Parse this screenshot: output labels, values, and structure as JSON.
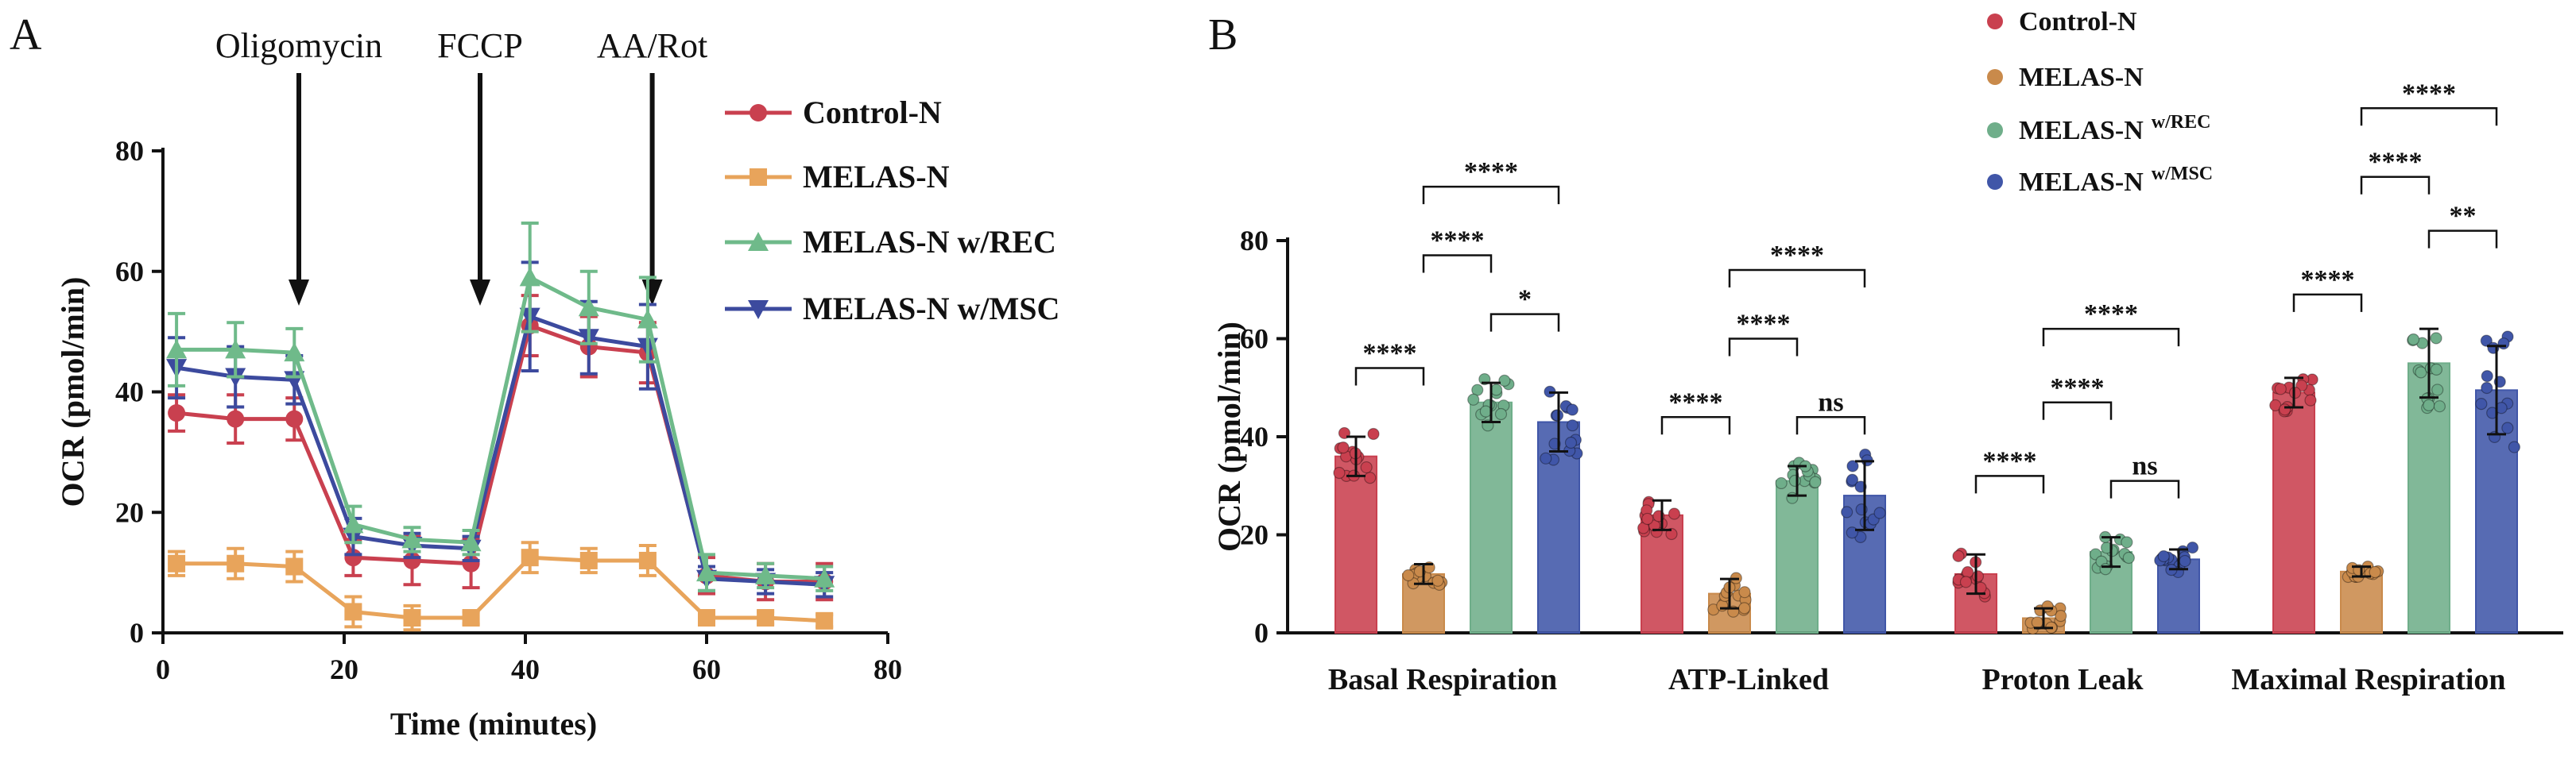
{
  "chart_data": [
    {
      "panel": "A",
      "type": "line",
      "xlabel": "Time (minutes)",
      "ylabel": "OCR (pmol/min)",
      "xlim": [
        0,
        80
      ],
      "ylim": [
        0,
        80
      ],
      "xticks": [
        "0",
        "20",
        "40",
        "60",
        "80"
      ],
      "yticks": [
        "0",
        "20",
        "40",
        "60",
        "80"
      ],
      "injections": [
        {
          "label": "Oligomycin",
          "x": 15
        },
        {
          "label": "FCCP",
          "x": 35
        },
        {
          "label": "AA/Rot",
          "x": 54
        }
      ],
      "x": [
        1.5,
        8,
        14.5,
        21,
        27.5,
        34,
        40.5,
        47,
        53.5,
        60,
        66.5,
        73
      ],
      "series": [
        {
          "name": "Control-N",
          "color": "#c9404f",
          "marker": "circle",
          "values": [
            36.5,
            35.5,
            35.5,
            12.5,
            12,
            11.5,
            51,
            47.5,
            46.5,
            9.5,
            8.5,
            8.5
          ],
          "errors": [
            3,
            4,
            3.5,
            3,
            4,
            4,
            5,
            5,
            5,
            3,
            3,
            3
          ]
        },
        {
          "name": "MELAS-N",
          "color": "#e8a45b",
          "marker": "square",
          "values": [
            11.5,
            11.5,
            11,
            3.5,
            2.5,
            2.5,
            12.5,
            12,
            12,
            2.5,
            2.5,
            2
          ],
          "errors": [
            2,
            2.5,
            2.5,
            2.5,
            2,
            1,
            2.5,
            2,
            2.5,
            1,
            1,
            1
          ]
        },
        {
          "name": "MELAS-N w/REC",
          "color": "#6fba8a",
          "marker": "triangle-up",
          "values": [
            47,
            47,
            46.5,
            18,
            15.5,
            15,
            59,
            54,
            52,
            10,
            9.5,
            9
          ],
          "errors": [
            6,
            4.5,
            4,
            3,
            2,
            2,
            9,
            6,
            7,
            3,
            2,
            2
          ]
        },
        {
          "name": "MELAS-N w/MSC",
          "color": "#3c4a9e",
          "marker": "triangle-down",
          "values": [
            44,
            42.5,
            42,
            16,
            14.5,
            14,
            52.5,
            49,
            47.5,
            9,
            8.5,
            8
          ],
          "errors": [
            5,
            5,
            4,
            3,
            2,
            2,
            9,
            6,
            7,
            2,
            2,
            2
          ]
        }
      ]
    },
    {
      "panel": "B",
      "type": "bar",
      "ylabel": "OCR (pmol/min)",
      "ylim": [
        0,
        80
      ],
      "yticks": [
        "0",
        "20",
        "40",
        "60",
        "80"
      ],
      "categories": [
        "Basal Respiration",
        "ATP-Linked",
        "Proton Leak",
        "Maximal Respiration"
      ],
      "series": [
        {
          "name": "Control-N",
          "legend_main": "Control-N",
          "legend_sup": "",
          "color": "#c9404f",
          "values": [
            36,
            24,
            12,
            49
          ],
          "errors": [
            4,
            3,
            4,
            3
          ]
        },
        {
          "name": "MELAS-N",
          "legend_main": "MELAS-N",
          "legend_sup": "",
          "color": "#c98a4b",
          "values": [
            12,
            8,
            3,
            12.5
          ],
          "errors": [
            2,
            3,
            2,
            1
          ]
        },
        {
          "name": "MELAS-N w/REC",
          "legend_main": "MELAS-N",
          "legend_sup": "w/REC",
          "color": "#6fae8a",
          "values": [
            47,
            31,
            16.5,
            55
          ],
          "errors": [
            4,
            3,
            3,
            7
          ]
        },
        {
          "name": "MELAS-N w/MSC",
          "legend_main": "MELAS-N",
          "legend_sup": "w/MSC",
          "color": "#4056a8",
          "values": [
            43,
            28,
            15,
            49.5
          ],
          "errors": [
            6,
            7,
            2,
            9
          ]
        }
      ],
      "significance": [
        {
          "group": 0,
          "from": 0,
          "to": 1,
          "label": "****",
          "y": 54
        },
        {
          "group": 0,
          "from": 1,
          "to": 2,
          "label": "****",
          "y": 77
        },
        {
          "group": 0,
          "from": 1,
          "to": 3,
          "label": "****",
          "y": 91
        },
        {
          "group": 0,
          "from": 2,
          "to": 3,
          "label": "*",
          "y": 65
        },
        {
          "group": 1,
          "from": 0,
          "to": 1,
          "label": "****",
          "y": 44
        },
        {
          "group": 1,
          "from": 1,
          "to": 2,
          "label": "****",
          "y": 60
        },
        {
          "group": 1,
          "from": 1,
          "to": 3,
          "label": "****",
          "y": 74
        },
        {
          "group": 1,
          "from": 2,
          "to": 3,
          "label": "ns",
          "y": 44
        },
        {
          "group": 2,
          "from": 0,
          "to": 1,
          "label": "****",
          "y": 32
        },
        {
          "group": 2,
          "from": 1,
          "to": 2,
          "label": "****",
          "y": 47
        },
        {
          "group": 2,
          "from": 1,
          "to": 3,
          "label": "****",
          "y": 62
        },
        {
          "group": 2,
          "from": 2,
          "to": 3,
          "label": "ns",
          "y": 31
        },
        {
          "group": 3,
          "from": 0,
          "to": 1,
          "label": "****",
          "y": 69
        },
        {
          "group": 3,
          "from": 1,
          "to": 2,
          "label": "****",
          "y": 93
        },
        {
          "group": 3,
          "from": 1,
          "to": 3,
          "label": "****",
          "y": 107
        },
        {
          "group": 3,
          "from": 2,
          "to": 3,
          "label": "**",
          "y": 82
        }
      ]
    }
  ]
}
